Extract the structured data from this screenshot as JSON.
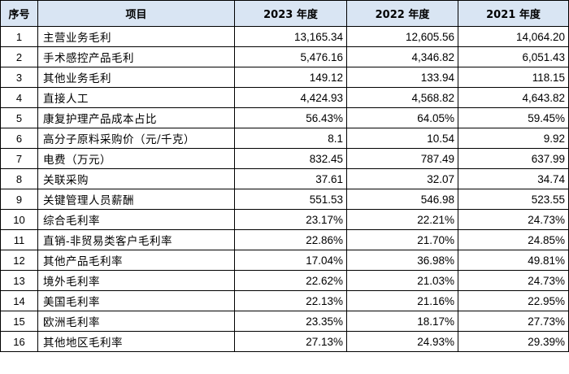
{
  "table": {
    "headers": {
      "seq": "序号",
      "item": "项目",
      "y2023": "2023 年度",
      "y2022": "2022 年度",
      "y2021": "2021 年度"
    },
    "header_background": "#d9e5f3",
    "rows": [
      {
        "seq": "1",
        "item": "主营业务毛利",
        "y2023": "13,165.34",
        "y2022": "12,605.56",
        "y2021": "14,064.20"
      },
      {
        "seq": "2",
        "item": "手术感控产品毛利",
        "y2023": "5,476.16",
        "y2022": "4,346.82",
        "y2021": "6,051.43"
      },
      {
        "seq": "3",
        "item": "其他业务毛利",
        "y2023": "149.12",
        "y2022": "133.94",
        "y2021": "118.15"
      },
      {
        "seq": "4",
        "item": "直接人工",
        "y2023": "4,424.93",
        "y2022": "4,568.82",
        "y2021": "4,643.82"
      },
      {
        "seq": "5",
        "item": "康复护理产品成本占比",
        "y2023": "56.43%",
        "y2022": "64.05%",
        "y2021": "59.45%"
      },
      {
        "seq": "6",
        "item": "高分子原料采购价（元/千克）",
        "y2023": "8.1",
        "y2022": "10.54",
        "y2021": "9.92"
      },
      {
        "seq": "7",
        "item": "电费（万元）",
        "y2023": "832.45",
        "y2022": "787.49",
        "y2021": "637.99"
      },
      {
        "seq": "8",
        "item": "关联采购",
        "y2023": "37.61",
        "y2022": "32.07",
        "y2021": "34.74"
      },
      {
        "seq": "9",
        "item": "关键管理人员薪酬",
        "y2023": "551.53",
        "y2022": "546.98",
        "y2021": "523.55"
      },
      {
        "seq": "10",
        "item": "综合毛利率",
        "y2023": "23.17%",
        "y2022": "22.21%",
        "y2021": "24.73%"
      },
      {
        "seq": "11",
        "item": "直销-非贸易类客户毛利率",
        "y2023": "22.86%",
        "y2022": "21.70%",
        "y2021": "24.85%"
      },
      {
        "seq": "12",
        "item": "其他产品毛利率",
        "y2023": "17.04%",
        "y2022": "36.98%",
        "y2021": "49.81%"
      },
      {
        "seq": "13",
        "item": "境外毛利率",
        "y2023": "22.62%",
        "y2022": "21.03%",
        "y2021": "24.73%"
      },
      {
        "seq": "14",
        "item": "美国毛利率",
        "y2023": "22.13%",
        "y2022": "21.16%",
        "y2021": "22.95%"
      },
      {
        "seq": "15",
        "item": "欧洲毛利率",
        "y2023": "23.35%",
        "y2022": "18.17%",
        "y2021": "27.73%"
      },
      {
        "seq": "16",
        "item": "其他地区毛利率",
        "y2023": "27.13%",
        "y2022": "24.93%",
        "y2021": "29.39%"
      }
    ]
  }
}
